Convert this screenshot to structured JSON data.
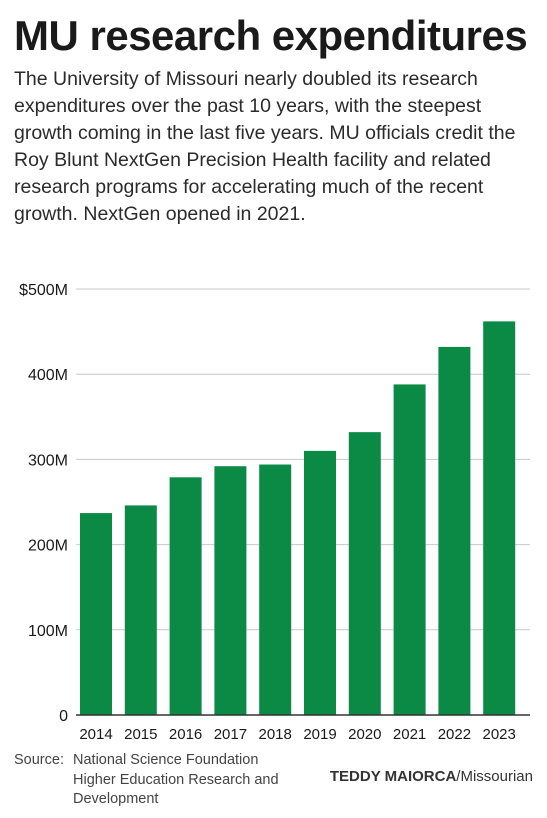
{
  "header": {
    "title": "MU research expenditures",
    "subtitle": "The University of Missouri nearly doubled its research expenditures over the past 10 years, with the steepest growth coming in the last five years. MU officials credit the Roy Blunt NextGen Precision Health facility and related research programs for accelerating much of the recent growth. NextGen opened in 2021."
  },
  "footer": {
    "source_label": "Source:",
    "source_text": "National Science Foundation Higher Education Research and Development",
    "author": "TEDDY MAIORCA",
    "publication": "/Missourian"
  },
  "colors": {
    "bar": "#0a8a45",
    "grid": "#c8c8c8",
    "axis": "#333333"
  },
  "chart_data": {
    "type": "bar",
    "categories": [
      "2014",
      "2015",
      "2016",
      "2017",
      "2018",
      "2019",
      "2020",
      "2021",
      "2022",
      "2023"
    ],
    "values": [
      237,
      246,
      279,
      292,
      294,
      310,
      332,
      388,
      432,
      462
    ],
    "ylim": [
      0,
      500
    ],
    "yticks": [
      0,
      100,
      200,
      300,
      400,
      500
    ],
    "ytick_labels": [
      "0",
      "100M",
      "200M",
      "300M",
      "400M",
      "$500M"
    ],
    "grid": true
  }
}
